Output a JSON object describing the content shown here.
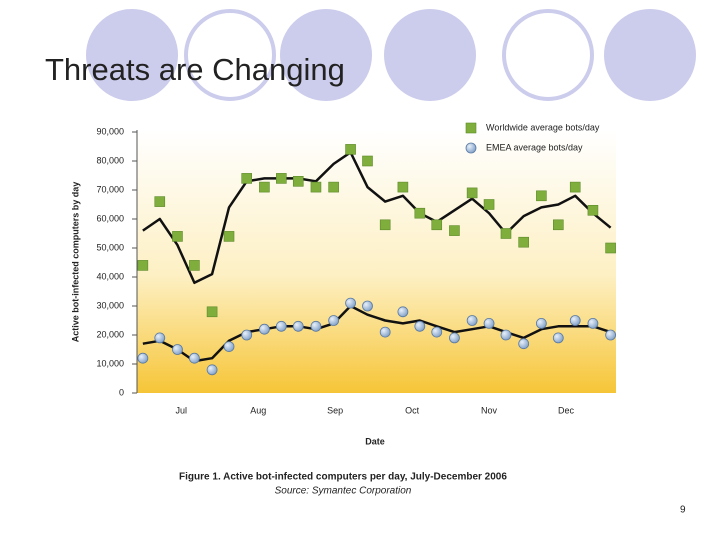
{
  "title": "Threats are Changing",
  "page_number": "9",
  "chart_data": {
    "type": "scatter",
    "y_label": "Active bot-infected computers by day",
    "x_label": "Date",
    "caption": "Figure 1. Active bot-infected computers per day, July-December 2006",
    "source": "Source: Symantec Corporation",
    "xlim": [
      6.45,
      12.65
    ],
    "xticks": [
      {
        "value": 7,
        "label": "Jul"
      },
      {
        "value": 8,
        "label": "Aug"
      },
      {
        "value": 9,
        "label": "Sep"
      },
      {
        "value": 10,
        "label": "Oct"
      },
      {
        "value": 11,
        "label": "Nov"
      },
      {
        "value": 12,
        "label": "Dec"
      }
    ],
    "ylim": [
      0,
      90000
    ],
    "yticks": [
      0,
      {
        "value": 10000,
        "label": "10,000"
      },
      {
        "value": 20000,
        "label": "20,000"
      },
      {
        "value": 30000,
        "label": "30,000"
      },
      {
        "value": 40000,
        "label": "40,000"
      },
      {
        "value": 50000,
        "label": "50,000"
      },
      {
        "value": 60000,
        "label": "60,000"
      },
      {
        "value": 70000,
        "label": "70,000"
      },
      {
        "value": 80000,
        "label": "80,000"
      },
      {
        "value": 90000,
        "label": "90,000"
      }
    ],
    "x": [
      6.5,
      6.72,
      6.95,
      7.17,
      7.4,
      7.62,
      7.85,
      8.08,
      8.3,
      8.52,
      8.75,
      8.98,
      9.2,
      9.42,
      9.65,
      9.88,
      10.1,
      10.32,
      10.55,
      10.78,
      11.0,
      11.22,
      11.45,
      11.68,
      11.9,
      12.12,
      12.35,
      12.58
    ],
    "trend_color": "#111111",
    "series": [
      {
        "name": "Worldwide average bots/day",
        "color": "#7fae3c",
        "marker": "square",
        "values": [
          44000,
          66000,
          54000,
          44000,
          28000,
          54000,
          74000,
          71000,
          74000,
          73000,
          71000,
          71000,
          84000,
          80000,
          58000,
          71000,
          62000,
          58000,
          56000,
          69000,
          65000,
          55000,
          52000,
          68000,
          58000,
          71000,
          63000,
          50000
        ],
        "trend": [
          56000,
          60000,
          51000,
          38000,
          41000,
          64000,
          73000,
          74000,
          74000,
          74000,
          73000,
          79000,
          83000,
          71000,
          66000,
          68000,
          62000,
          59000,
          63000,
          67000,
          62000,
          55000,
          61000,
          64000,
          65000,
          68000,
          62000,
          57000
        ]
      },
      {
        "name": "EMEA average bots/day",
        "color": "#8fb0d6",
        "marker": "circle",
        "values": [
          12000,
          19000,
          15000,
          12000,
          8000,
          16000,
          20000,
          22000,
          23000,
          23000,
          23000,
          25000,
          31000,
          30000,
          21000,
          28000,
          23000,
          21000,
          19000,
          25000,
          24000,
          20000,
          17000,
          24000,
          19000,
          25000,
          24000,
          20000
        ],
        "trend": [
          17000,
          18000,
          15000,
          11000,
          12000,
          18000,
          21000,
          22000,
          23000,
          23000,
          22000,
          24000,
          30000,
          27000,
          25000,
          24000,
          25000,
          23000,
          21000,
          22000,
          23000,
          21000,
          19000,
          22000,
          23000,
          23000,
          23000,
          21000
        ]
      }
    ]
  }
}
